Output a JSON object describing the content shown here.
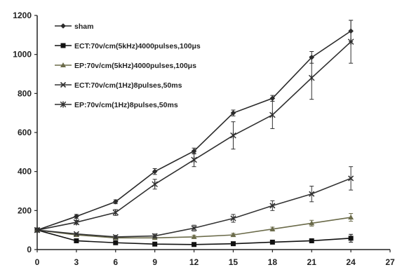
{
  "chart_data": {
    "type": "line",
    "title": "",
    "xlabel": "",
    "ylabel": "",
    "xlim": [
      0,
      27
    ],
    "ylim": [
      0,
      1200
    ],
    "x_ticks": [
      0,
      3,
      6,
      9,
      12,
      15,
      18,
      21,
      24,
      27
    ],
    "x_tick_labels": [
      "0",
      "3",
      "6",
      "9",
      "12",
      "15",
      "18",
      "21",
      "24",
      "27"
    ],
    "y_ticks": [
      0,
      200,
      400,
      600,
      800,
      1000,
      1200
    ],
    "y_tick_labels": [
      "0",
      "200",
      "400",
      "600",
      "800",
      "1000",
      "1200"
    ],
    "grid": false,
    "legend_position": "top-left",
    "x": [
      0,
      3,
      6,
      9,
      12,
      15,
      18,
      21,
      24
    ],
    "series": [
      {
        "name": "sham",
        "marker": "diamond",
        "color": "#2a2a2a",
        "values": [
          100,
          170,
          245,
          400,
          505,
          700,
          775,
          985,
          1120
        ],
        "errors": [
          0,
          10,
          10,
          15,
          15,
          15,
          15,
          30,
          55
        ]
      },
      {
        "name": "ECT:70v/cm(5kHz)4000pulses,100μs",
        "marker": "square",
        "color": "#111111",
        "values": [
          100,
          45,
          35,
          28,
          26,
          30,
          38,
          45,
          58
        ],
        "errors": [
          0,
          5,
          5,
          5,
          5,
          5,
          5,
          10,
          20
        ]
      },
      {
        "name": "EP:70v/cm(5kHz)4000pulses,100μs",
        "marker": "triangle",
        "color": "#6b6b4a",
        "values": [
          100,
          75,
          60,
          60,
          65,
          75,
          105,
          135,
          165
        ],
        "errors": [
          0,
          5,
          5,
          5,
          8,
          8,
          10,
          15,
          20
        ]
      },
      {
        "name": "ECT:70v/cm(1Hz)8pulses,50ms",
        "marker": "x",
        "color": "#333333",
        "values": [
          100,
          80,
          65,
          70,
          110,
          160,
          225,
          285,
          365
        ],
        "errors": [
          0,
          5,
          8,
          10,
          15,
          20,
          25,
          40,
          60
        ]
      },
      {
        "name": "EP:70v/cm(1Hz)8pulses,50ms",
        "marker": "star",
        "color": "#2f2f2f",
        "values": [
          100,
          140,
          190,
          335,
          460,
          585,
          690,
          880,
          1065
        ],
        "errors": [
          0,
          10,
          15,
          25,
          35,
          70,
          70,
          110,
          110
        ]
      }
    ]
  }
}
